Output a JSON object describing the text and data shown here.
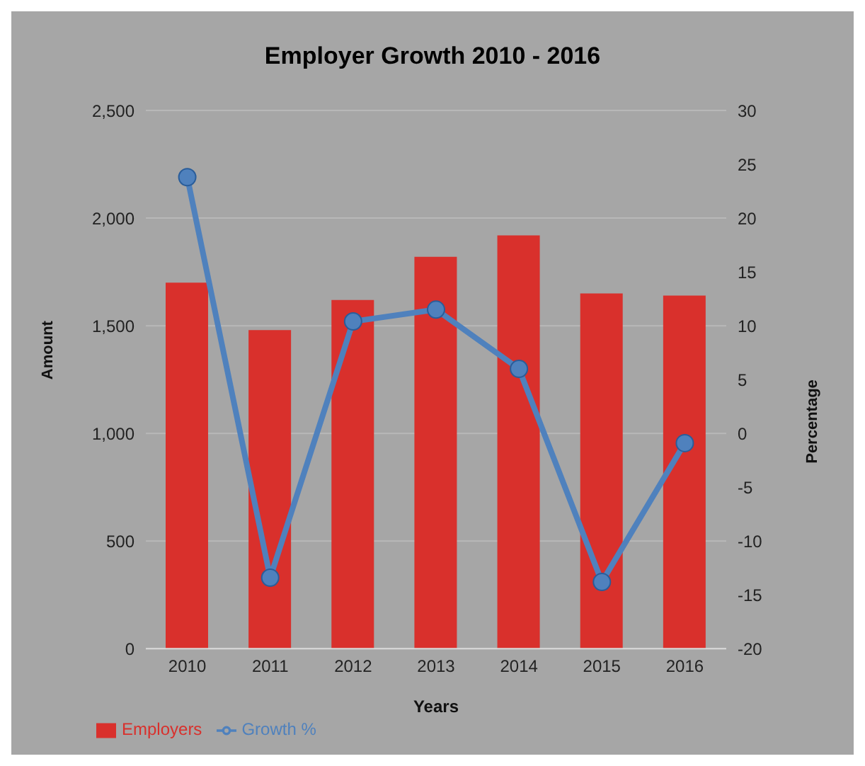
{
  "chart_data": {
    "type": "bar",
    "title": "Employer Growth 2010 - 2016",
    "xlabel": "Years",
    "ylabel": "Amount",
    "y2label": "Percentage",
    "categories": [
      "2010",
      "2011",
      "2012",
      "2013",
      "2014",
      "2015",
      "2016"
    ],
    "series": [
      {
        "name": "Employers",
        "color": "#d9302c",
        "values": [
          1700,
          1480,
          1620,
          1820,
          1920,
          1650,
          1640
        ]
      },
      {
        "name": "Growth %",
        "type": "line",
        "axis": "y2",
        "color": "#4f81bd",
        "values": [
          23.8,
          -13.4,
          10.4,
          11.5,
          6,
          -13.8,
          -0.9
        ]
      }
    ],
    "ylim": [
      0,
      2500
    ],
    "yticks": [
      0,
      {
        "value": 500,
        "label": "500"
      },
      {
        "value": 1000,
        "label": "1,000"
      },
      {
        "value": 1500,
        "label": "1,500"
      },
      {
        "value": 2000,
        "label": "2,000"
      },
      {
        "value": 2500,
        "label": "2,500"
      }
    ],
    "y2lim": [
      -20,
      30
    ],
    "y2ticks": [
      -20,
      -15,
      -10,
      -5,
      0,
      5,
      10,
      15,
      20,
      25,
      30
    ],
    "grid": "y",
    "legend": "bottom left",
    "marker": "circle"
  }
}
